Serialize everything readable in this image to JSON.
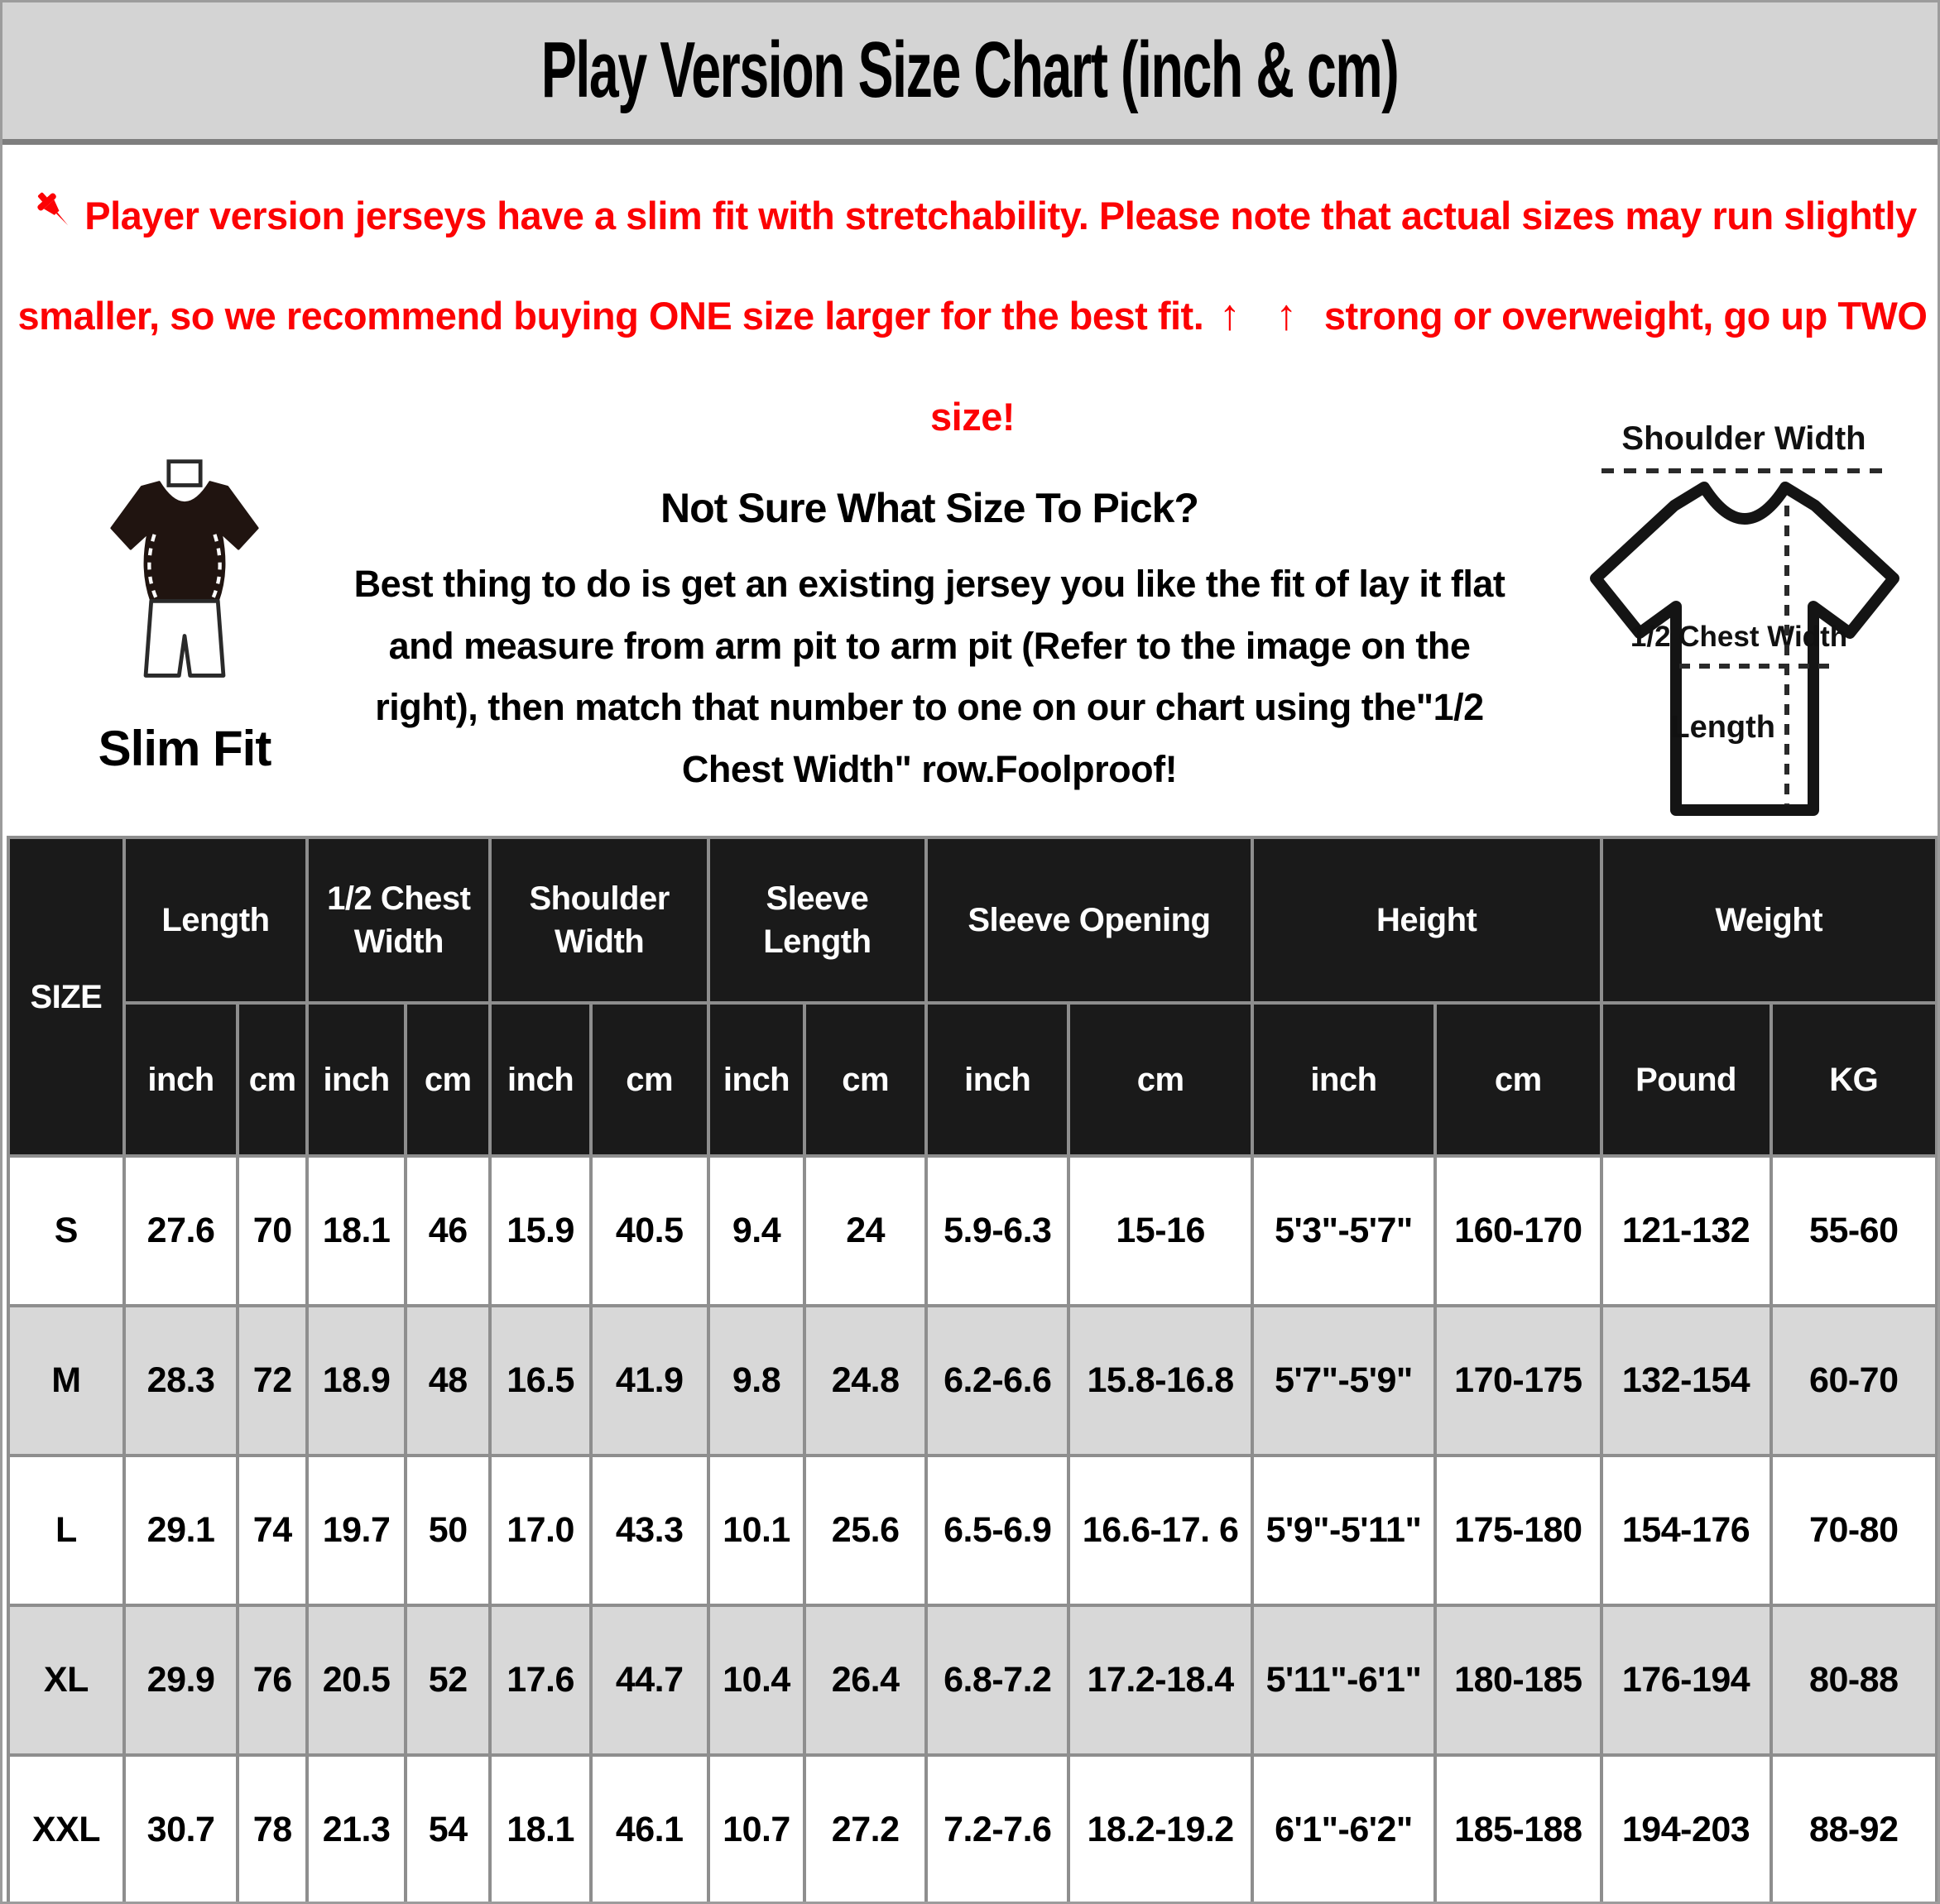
{
  "title": "Play Version Size Chart (inch & cm)",
  "colors": {
    "accent_red": "#fc0204",
    "title_bar_bg": "#d4d4d4",
    "header_bg": "#1a1a1a",
    "alt_row_bg": "#d8d8d8",
    "grid_border": "#8e8e8e"
  },
  "notice": {
    "pin_icon": "pushpin-icon",
    "text_before": "Player version jerseys have a slim fit with stretchability. Please note that actual sizes may run slightly smaller, so we recommend buying ONE size larger for the best fit. ",
    "arrows": "↑ ↑",
    "text_after": " strong or overweight, go up TWO size!"
  },
  "fit_figure": {
    "icon": "slim-fit-figure-icon",
    "label": "Slim Fit"
  },
  "guide": {
    "heading": "Not Sure What Size To Pick?",
    "body": "Best thing to do is get an existing jersey you like the fit of lay it flat and measure from arm pit to arm pit (Refer to the image on the right), then match that number to one on our chart using the\"1/2 Chest Width\" row.Foolproof!"
  },
  "shirt_diagram": {
    "icon": "tshirt-diagram-icon",
    "shoulder_label": "Shoulder Width",
    "chest_label": "1/2 Chest Width",
    "length_label": "Length"
  },
  "table": {
    "size_header": "SIZE",
    "groups": [
      {
        "label": "Length",
        "units": [
          "inch",
          "cm"
        ]
      },
      {
        "label": "1/2 Chest Width",
        "units": [
          "inch",
          "cm"
        ]
      },
      {
        "label": "Shoulder Width",
        "units": [
          "inch",
          "cm"
        ]
      },
      {
        "label": "Sleeve Length",
        "units": [
          "inch",
          "cm"
        ]
      },
      {
        "label": "Sleeve Opening",
        "units": [
          "inch",
          "cm"
        ]
      },
      {
        "label": "Height",
        "units": [
          "inch",
          "cm"
        ]
      },
      {
        "label": "Weight",
        "units": [
          "Pound",
          "KG"
        ]
      }
    ],
    "rows": [
      {
        "size": "S",
        "cells": [
          "27.6",
          "70",
          "18.1",
          "46",
          "15.9",
          "40.5",
          "9.4",
          "24",
          "5.9-6.3",
          "15-16",
          "5'3\"-5'7\"",
          "160-170",
          "121-132",
          "55-60"
        ]
      },
      {
        "size": "M",
        "cells": [
          "28.3",
          "72",
          "18.9",
          "48",
          "16.5",
          "41.9",
          "9.8",
          "24.8",
          "6.2-6.6",
          "15.8-16.8",
          "5'7\"-5'9\"",
          "170-175",
          "132-154",
          "60-70"
        ]
      },
      {
        "size": "L",
        "cells": [
          "29.1",
          "74",
          "19.7",
          "50",
          "17.0",
          "43.3",
          "10.1",
          "25.6",
          "6.5-6.9",
          "16.6-17. 6",
          "5'9\"-5'11\"",
          "175-180",
          "154-176",
          "70-80"
        ]
      },
      {
        "size": "XL",
        "cells": [
          "29.9",
          "76",
          "20.5",
          "52",
          "17.6",
          "44.7",
          "10.4",
          "26.4",
          "6.8-7.2",
          "17.2-18.4",
          "5'11\"-6'1\"",
          "180-185",
          "176-194",
          "80-88"
        ]
      },
      {
        "size": "XXL",
        "cells": [
          "30.7",
          "78",
          "21.3",
          "54",
          "18.1",
          "46.1",
          "10.7",
          "27.2",
          "7.2-7.6",
          "18.2-19.2",
          "6'1\"-6'2\"",
          "185-188",
          "194-203",
          "88-92"
        ]
      }
    ]
  }
}
